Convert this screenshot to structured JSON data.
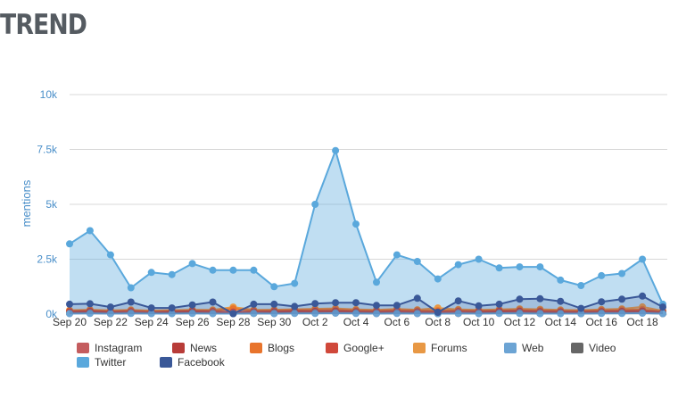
{
  "title": "TREND",
  "chart_data": {
    "type": "area",
    "ylabel": "mentions",
    "ylim": [
      0,
      10000
    ],
    "yticks": [
      {
        "value": 0,
        "label": "0k"
      },
      {
        "value": 2500,
        "label": "2.5k"
      },
      {
        "value": 5000,
        "label": "5k"
      },
      {
        "value": 7500,
        "label": "7.5k"
      },
      {
        "value": 10000,
        "label": "10k"
      }
    ],
    "xticks": [
      {
        "index": 0,
        "label": "Sep 20"
      },
      {
        "index": 2,
        "label": "Sep 22"
      },
      {
        "index": 4,
        "label": "Sep 24"
      },
      {
        "index": 6,
        "label": "Sep 26"
      },
      {
        "index": 8,
        "label": "Sep 28"
      },
      {
        "index": 10,
        "label": "Sep 30"
      },
      {
        "index": 12,
        "label": "Oct 2"
      },
      {
        "index": 14,
        "label": "Oct 4"
      },
      {
        "index": 16,
        "label": "Oct 6"
      },
      {
        "index": 18,
        "label": "Oct 8"
      },
      {
        "index": 20,
        "label": "Oct 10"
      },
      {
        "index": 22,
        "label": "Oct 12"
      },
      {
        "index": 24,
        "label": "Oct 14"
      },
      {
        "index": 26,
        "label": "Oct 16"
      },
      {
        "index": 28,
        "label": "Oct 18"
      }
    ],
    "grid": true,
    "legend_position": "bottom",
    "series": [
      {
        "name": "Instagram",
        "color": "#c45c5e",
        "values": [
          60,
          70,
          50,
          80,
          60,
          50,
          70,
          80,
          60,
          70,
          60,
          70,
          80,
          90,
          70,
          60,
          80,
          70,
          60,
          80,
          60,
          70,
          80,
          70,
          60,
          50,
          70,
          80,
          90,
          50
        ]
      },
      {
        "name": "News",
        "color": "#b83c38",
        "values": [
          100,
          120,
          90,
          110,
          80,
          100,
          120,
          110,
          90,
          100,
          110,
          130,
          120,
          140,
          110,
          100,
          120,
          100,
          90,
          110,
          100,
          120,
          130,
          110,
          100,
          90,
          110,
          120,
          140,
          80
        ]
      },
      {
        "name": "Blogs",
        "color": "#e8742c",
        "values": [
          150,
          180,
          140,
          170,
          130,
          150,
          170,
          160,
          240,
          160,
          170,
          190,
          200,
          220,
          180,
          160,
          200,
          170,
          150,
          180,
          160,
          180,
          200,
          180,
          160,
          150,
          180,
          190,
          210,
          120
        ]
      },
      {
        "name": "Google+",
        "color": "#d0483a",
        "values": [
          40,
          50,
          30,
          40,
          30,
          40,
          50,
          40,
          30,
          40,
          30,
          40,
          50,
          60,
          40,
          30,
          40,
          30,
          40,
          30,
          40,
          50,
          40,
          30,
          40,
          30,
          40,
          50,
          60,
          30
        ]
      },
      {
        "name": "Forums",
        "color": "#e89844",
        "values": [
          180,
          200,
          170,
          190,
          160,
          180,
          200,
          190,
          320,
          190,
          200,
          220,
          240,
          260,
          210,
          190,
          230,
          200,
          280,
          210,
          190,
          210,
          240,
          220,
          190,
          180,
          210,
          240,
          330,
          150
        ]
      },
      {
        "name": "Web",
        "color": "#6ca4d4",
        "values": [
          20,
          30,
          20,
          30,
          20,
          20,
          30,
          20,
          20,
          30,
          20,
          30,
          30,
          40,
          30,
          20,
          30,
          20,
          20,
          30,
          20,
          30,
          30,
          20,
          20,
          20,
          30,
          30,
          40,
          20
        ]
      },
      {
        "name": "Video",
        "color": "#666666",
        "values": [
          30,
          40,
          20,
          40,
          30,
          30,
          40,
          30,
          20,
          30,
          30,
          40,
          40,
          50,
          40,
          30,
          40,
          30,
          20,
          30,
          30,
          40,
          40,
          30,
          30,
          20,
          40,
          40,
          50,
          20
        ]
      },
      {
        "name": "Twitter",
        "color": "#5aa8dc",
        "values": [
          3200,
          3800,
          2700,
          1200,
          1900,
          1800,
          2300,
          2000,
          2000,
          2000,
          1250,
          1400,
          5000,
          7450,
          4100,
          1450,
          2700,
          2400,
          1600,
          2250,
          2500,
          2100,
          2150,
          2150,
          1550,
          1300,
          1750,
          1850,
          2500,
          450
        ]
      },
      {
        "name": "Facebook",
        "color": "#3a5898",
        "values": [
          450,
          470,
          320,
          550,
          280,
          280,
          420,
          550,
          20,
          450,
          450,
          350,
          480,
          520,
          520,
          400,
          400,
          720,
          80,
          600,
          380,
          450,
          680,
          700,
          580,
          260,
          560,
          680,
          820,
          320
        ]
      }
    ]
  }
}
